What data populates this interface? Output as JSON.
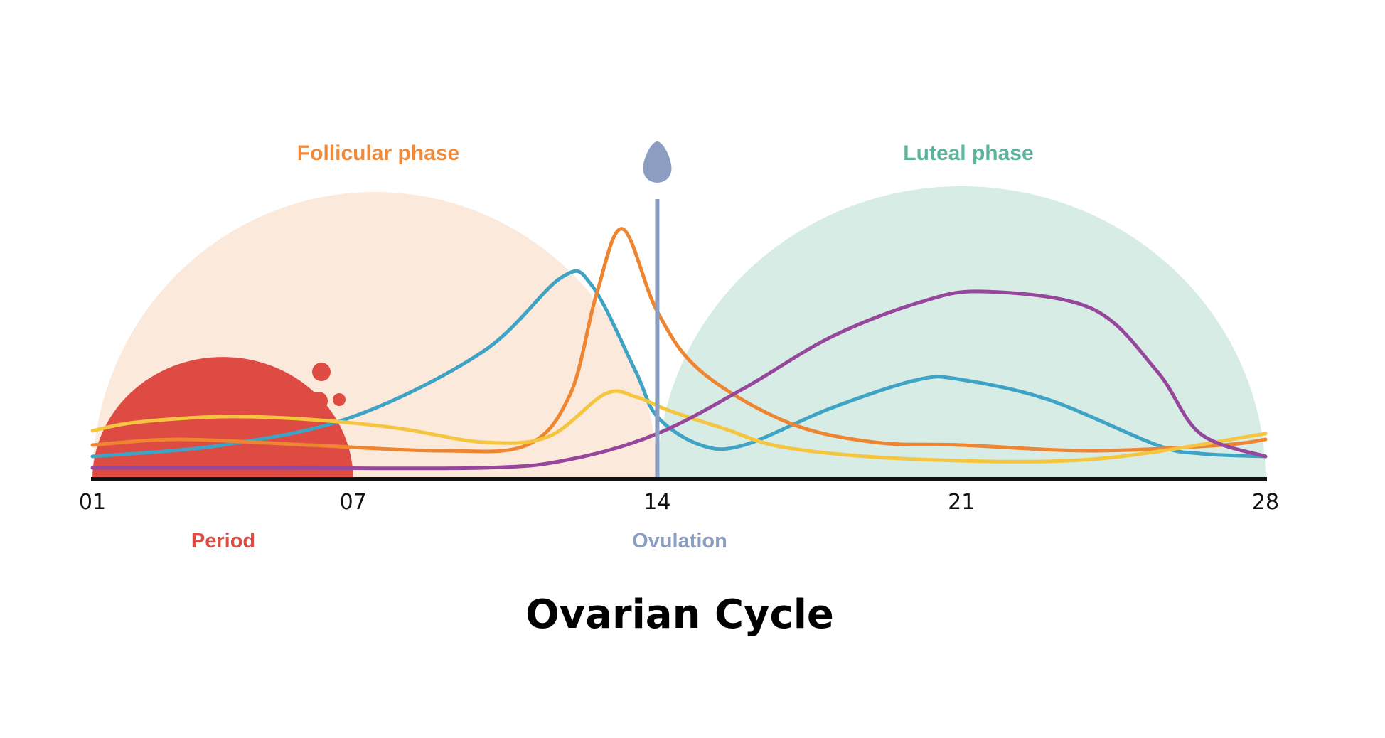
{
  "chart_data": {
    "type": "line",
    "title": "Ovarian Cycle",
    "xlabel": "",
    "ylabel": "",
    "xlim": [
      1,
      28
    ],
    "ylim": [
      0,
      1
    ],
    "x_ticks": [
      {
        "day": 1,
        "label": "01"
      },
      {
        "day": 7,
        "label": "07"
      },
      {
        "day": 14,
        "label": "14"
      },
      {
        "day": 21,
        "label": "21"
      },
      {
        "day": 28,
        "label": "28"
      }
    ],
    "phases": [
      {
        "name": "Follicular phase",
        "start": 1,
        "end": 14,
        "peak": 1.01,
        "color": "#fbeadc",
        "label_color": "#ee8a3c"
      },
      {
        "name": "Luteal phase",
        "start": 14,
        "end": 28,
        "peak": 1.03,
        "color": "#d6ece5",
        "label_color": "#5bb59a"
      }
    ],
    "period": {
      "label": "Period",
      "start": 1,
      "end": 7,
      "peak": 0.43,
      "color": "#dd4b42"
    },
    "ovulation": {
      "label": "Ovulation",
      "day": 14,
      "color": "#8c9dc2"
    },
    "series": [
      {
        "name": "blue",
        "color": "#3ea3c4",
        "x": [
          1,
          4,
          7,
          10,
          11.8,
          12.5,
          13.5,
          14,
          15,
          16,
          18,
          20,
          21,
          23,
          25.5,
          26.5,
          28
        ],
        "y": [
          0.08,
          0.12,
          0.22,
          0.45,
          0.71,
          0.68,
          0.38,
          0.22,
          0.12,
          0.12,
          0.25,
          0.35,
          0.35,
          0.28,
          0.12,
          0.09,
          0.08
        ]
      },
      {
        "name": "orange",
        "color": "#ee8531",
        "x": [
          1,
          3,
          6,
          9,
          11,
          12,
          12.6,
          13.2,
          14,
          15,
          17,
          19,
          21,
          24,
          27,
          28
        ],
        "y": [
          0.12,
          0.14,
          0.12,
          0.1,
          0.12,
          0.3,
          0.65,
          0.88,
          0.59,
          0.38,
          0.2,
          0.13,
          0.12,
          0.1,
          0.12,
          0.14
        ]
      },
      {
        "name": "yellow",
        "color": "#f6c540",
        "x": [
          1,
          2,
          4,
          6,
          8,
          10,
          11.5,
          12.8,
          13.5,
          14.3,
          15.5,
          17,
          20,
          24,
          28
        ],
        "y": [
          0.17,
          0.2,
          0.22,
          0.21,
          0.18,
          0.13,
          0.15,
          0.3,
          0.29,
          0.24,
          0.18,
          0.11,
          0.07,
          0.07,
          0.16
        ]
      },
      {
        "name": "purple",
        "color": "#96479c",
        "x": [
          1,
          5,
          10,
          12,
          14,
          16,
          18,
          20,
          21.5,
          24,
          25.5,
          26.5,
          28
        ],
        "y": [
          0.04,
          0.04,
          0.04,
          0.07,
          0.16,
          0.32,
          0.5,
          0.62,
          0.66,
          0.6,
          0.38,
          0.16,
          0.08
        ]
      }
    ]
  }
}
